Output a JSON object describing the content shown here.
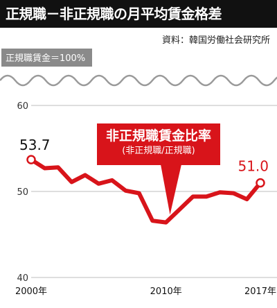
{
  "title": "正規職－非正規職の月平均賃金格差",
  "source": "資料：韓国労働社会研究所",
  "baseline_label": "正規職賃金＝100%",
  "callout": {
    "title": "非正規職賃金比率",
    "subtitle": "(非正規職/正規職)"
  },
  "colors": {
    "line": "#d8141a",
    "title_background": "#111111",
    "baseline": "#9a9a9a",
    "grid": "#bdbdbd"
  },
  "chart_data": {
    "type": "line",
    "title": "正規職－非正規職の月平均賃金格差",
    "series": [
      {
        "name": "非正規職賃金比率",
        "x": [
          2000,
          2001,
          2002,
          2003,
          2004,
          2005,
          2006,
          2007,
          2008,
          2009,
          2010,
          2011,
          2012,
          2013,
          2014,
          2015,
          2016,
          2017
        ],
        "y": [
          53.7,
          52.7,
          52.8,
          51.1,
          51.9,
          50.9,
          51.3,
          50.1,
          49.8,
          46.6,
          46.4,
          47.9,
          49.4,
          49.4,
          49.9,
          49.8,
          49.1,
          51.0
        ]
      }
    ],
    "y_ticks": [
      "60",
      "50",
      "40"
    ],
    "x_ticks": [
      "2000年",
      "2010年",
      "2017年"
    ],
    "ylim": [
      40,
      60
    ],
    "xlim": [
      2000,
      2017
    ],
    "grid": true,
    "annotations": [
      "53.7",
      "51.0"
    ]
  }
}
